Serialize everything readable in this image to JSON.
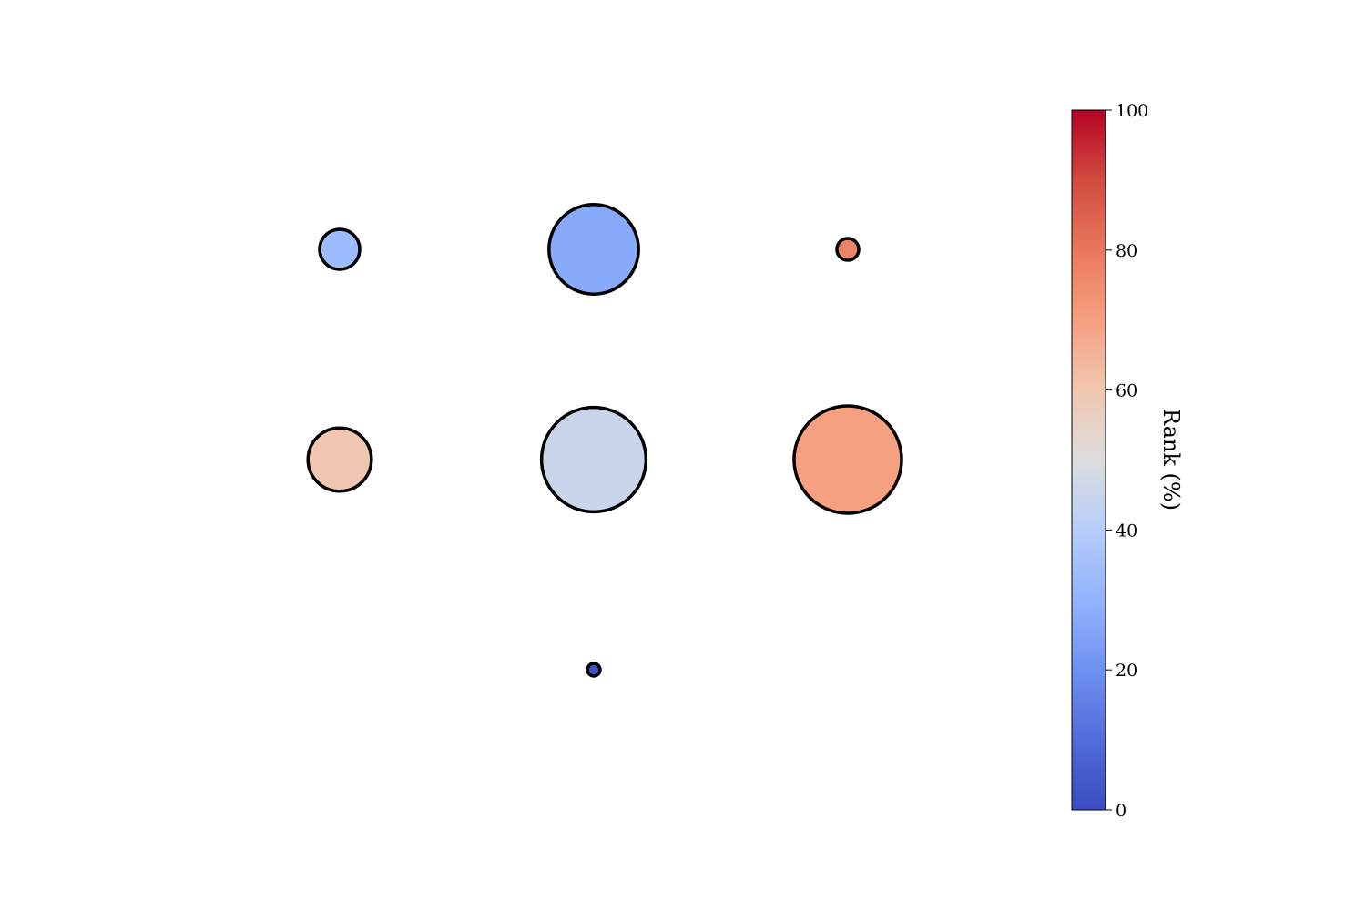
{
  "chart_data": {
    "type": "scatter",
    "title": "",
    "xlabel": "",
    "ylabel": "",
    "axes_visible": false,
    "grid": false,
    "points": [
      {
        "col": 1,
        "row": 1,
        "rank": 33,
        "size": 1
      },
      {
        "col": 2,
        "row": 1,
        "rank": 27,
        "size": 5
      },
      {
        "col": 3,
        "row": 1,
        "rank": 77,
        "size": 0.3
      },
      {
        "col": 1,
        "row": 2,
        "rank": 60,
        "size": 2.5
      },
      {
        "col": 2,
        "row": 2,
        "rank": 45,
        "size": 6.8
      },
      {
        "col": 3,
        "row": 2,
        "rank": 70,
        "size": 7.2
      },
      {
        "col": 2,
        "row": 3,
        "rank": 2,
        "size": 0.1
      }
    ],
    "colorbar": {
      "label": "Rank (%)",
      "colormap": "coolwarm",
      "range": [
        0,
        100
      ],
      "ticks": [
        0,
        20,
        40,
        60,
        80,
        100
      ],
      "tick_labels": [
        "0",
        "20",
        "40",
        "60",
        "80",
        "100"
      ],
      "placement": "right"
    },
    "colors": {
      "edge": "#000000",
      "cmap_low": "#3b4cc0",
      "cmap_mid": "#dddddd",
      "cmap_high": "#b40426"
    }
  }
}
